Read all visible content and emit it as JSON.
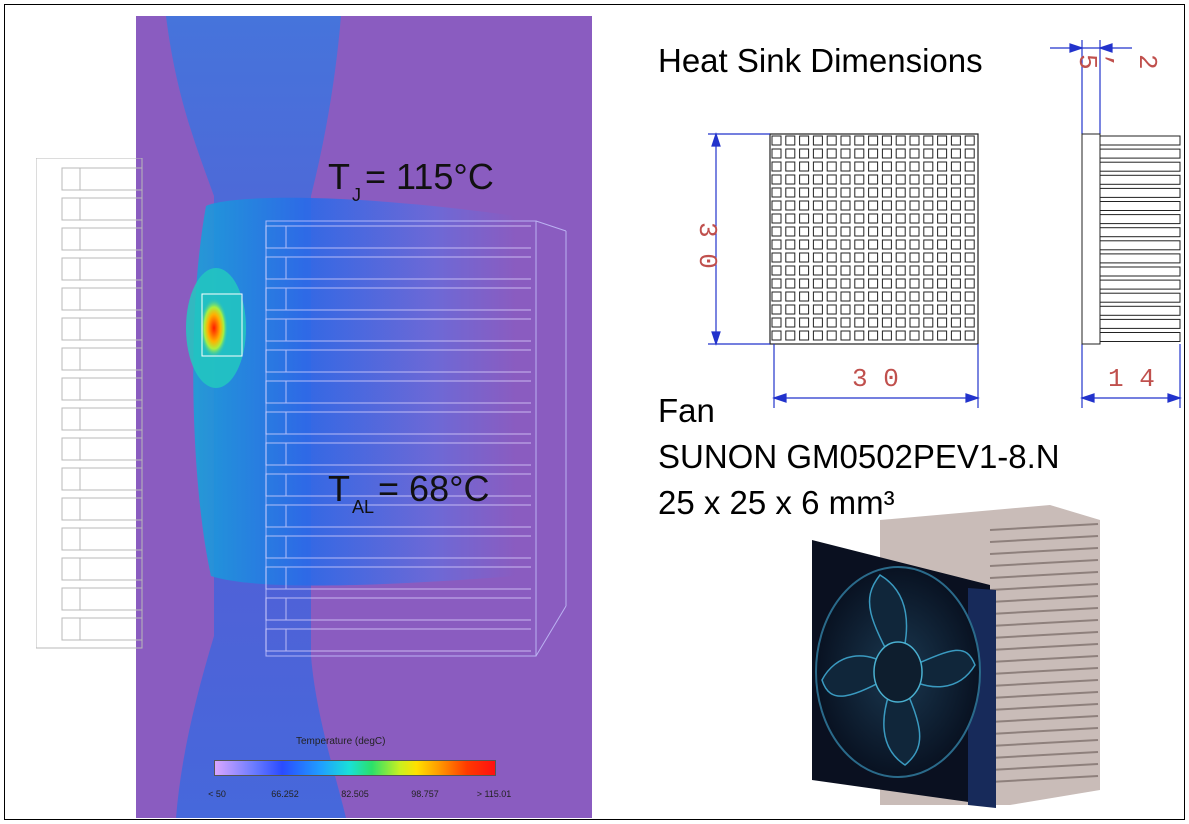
{
  "simulation": {
    "tj_prefix": "T",
    "tj_sub": "J",
    "tj_value": "= 115°C",
    "tal_prefix": "T",
    "tal_sub": "AL",
    "tal_value": "= 68°C",
    "colorbar": {
      "title": "Temperature (degC)",
      "ticks": [
        "< 50",
        "66.252",
        "82.505",
        "98.757",
        "> 115.01"
      ]
    }
  },
  "heatsink": {
    "title": "Heat Sink Dimensions",
    "dim_height": "3 0",
    "dim_width": "3 0",
    "dim_fin": "2 , 5",
    "dim_depth": "1 4"
  },
  "fan": {
    "label": "Fan",
    "model": "SUNON GM0502PEV1-8.N",
    "size": "25 x 25 x 6 mm³"
  },
  "colors": {
    "background_purple": "#8a5cc0",
    "dimension_blue": "#2233cc",
    "dimension_red": "#c0504d"
  }
}
